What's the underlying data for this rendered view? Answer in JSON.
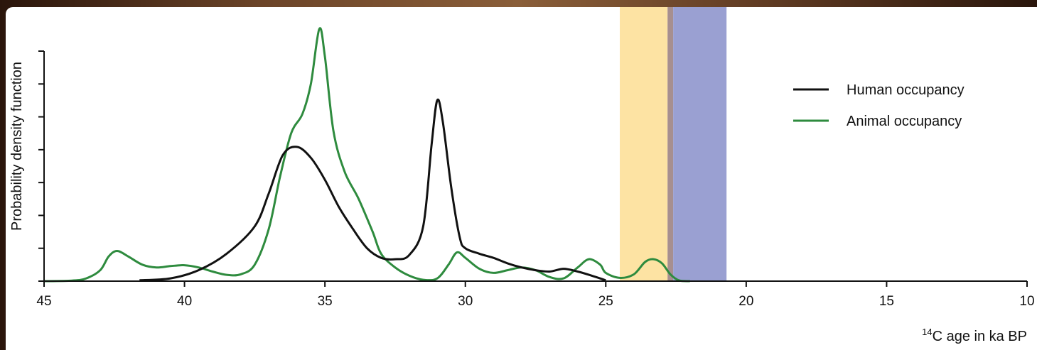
{
  "colors": {
    "human": "#111111",
    "animal": "#2e8b3e",
    "band_yellow": "#fde3a3",
    "band_brown": "#a78f8f",
    "band_blue": "#9aa0d2"
  },
  "chart_data": {
    "type": "line",
    "title": "",
    "xlabel_sup": "14",
    "xlabel": "C age in ka BP",
    "ylabel": "Probability density function",
    "xlim": [
      45,
      10
    ],
    "x_reversed": true,
    "ylim": [
      0,
      1
    ],
    "x_ticks": [
      45,
      40,
      35,
      30,
      25,
      20,
      15,
      10
    ],
    "y_tick_count": 8,
    "legend_position": "top-right",
    "bands": [
      {
        "from": 24.5,
        "to": 22.8,
        "color": "#fde3a3"
      },
      {
        "from": 22.8,
        "to": 22.6,
        "color": "#a78f8f"
      },
      {
        "from": 22.6,
        "to": 20.7,
        "color": "#9aa0d2"
      }
    ],
    "series": [
      {
        "name": "Human occupancy",
        "color": "#111111",
        "points": [
          [
            41.6,
            0.003
          ],
          [
            40.5,
            0.01
          ],
          [
            39.5,
            0.04
          ],
          [
            38.5,
            0.1
          ],
          [
            37.5,
            0.2
          ],
          [
            37,
            0.32
          ],
          [
            36.5,
            0.46
          ],
          [
            36,
            0.49
          ],
          [
            35.5,
            0.45
          ],
          [
            35,
            0.37
          ],
          [
            34.5,
            0.27
          ],
          [
            34,
            0.19
          ],
          [
            33.5,
            0.12
          ],
          [
            33,
            0.085
          ],
          [
            32.5,
            0.08
          ],
          [
            32,
            0.095
          ],
          [
            31.5,
            0.2
          ],
          [
            31.2,
            0.5
          ],
          [
            31.0,
            0.66
          ],
          [
            30.8,
            0.58
          ],
          [
            30.5,
            0.34
          ],
          [
            30.2,
            0.16
          ],
          [
            30,
            0.12
          ],
          [
            29.5,
            0.1
          ],
          [
            29,
            0.085
          ],
          [
            28.5,
            0.065
          ],
          [
            28,
            0.05
          ],
          [
            27.5,
            0.04
          ],
          [
            27,
            0.035
          ],
          [
            26.5,
            0.045
          ],
          [
            26,
            0.035
          ],
          [
            25.5,
            0.02
          ],
          [
            25,
            0.003
          ]
        ]
      },
      {
        "name": "Animal occupancy",
        "color": "#2e8b3e",
        "points": [
          [
            45,
            0.0
          ],
          [
            44,
            0.002
          ],
          [
            43.5,
            0.01
          ],
          [
            43,
            0.04
          ],
          [
            42.7,
            0.09
          ],
          [
            42.4,
            0.11
          ],
          [
            42,
            0.09
          ],
          [
            41.5,
            0.06
          ],
          [
            41,
            0.05
          ],
          [
            40.5,
            0.055
          ],
          [
            40,
            0.058
          ],
          [
            39.5,
            0.05
          ],
          [
            39,
            0.035
          ],
          [
            38.5,
            0.023
          ],
          [
            38,
            0.025
          ],
          [
            37.5,
            0.06
          ],
          [
            37,
            0.19
          ],
          [
            36.6,
            0.38
          ],
          [
            36.2,
            0.54
          ],
          [
            35.8,
            0.61
          ],
          [
            35.5,
            0.72
          ],
          [
            35.2,
            0.92
          ],
          [
            35.0,
            0.82
          ],
          [
            34.7,
            0.55
          ],
          [
            34.3,
            0.4
          ],
          [
            33.8,
            0.3
          ],
          [
            33.3,
            0.18
          ],
          [
            33,
            0.1
          ],
          [
            32.5,
            0.05
          ],
          [
            32,
            0.02
          ],
          [
            31.5,
            0.005
          ],
          [
            31,
            0.01
          ],
          [
            30.6,
            0.06
          ],
          [
            30.3,
            0.105
          ],
          [
            30,
            0.085
          ],
          [
            29.5,
            0.045
          ],
          [
            29,
            0.03
          ],
          [
            28.5,
            0.04
          ],
          [
            28,
            0.05
          ],
          [
            27.5,
            0.04
          ],
          [
            27,
            0.015
          ],
          [
            26.5,
            0.01
          ],
          [
            26,
            0.05
          ],
          [
            25.6,
            0.08
          ],
          [
            25.2,
            0.06
          ],
          [
            25,
            0.03
          ],
          [
            24.5,
            0.012
          ],
          [
            24,
            0.025
          ],
          [
            23.6,
            0.07
          ],
          [
            23.3,
            0.08
          ],
          [
            23,
            0.065
          ],
          [
            22.7,
            0.025
          ],
          [
            22.4,
            0.003
          ],
          [
            22,
            0.0
          ]
        ]
      }
    ]
  }
}
